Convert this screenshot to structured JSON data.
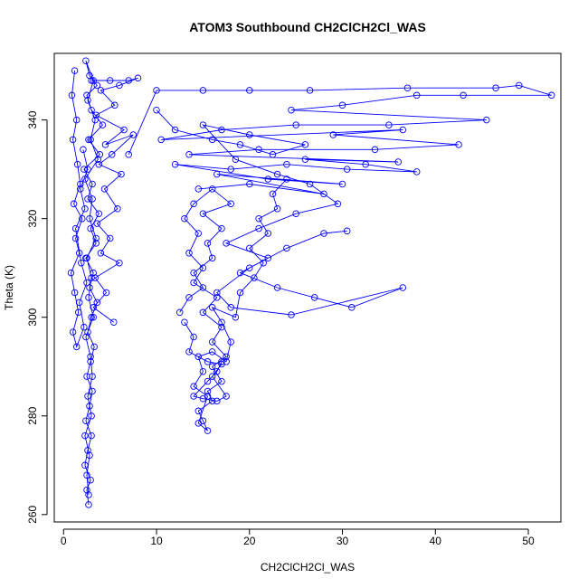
{
  "chart_data": {
    "type": "scatter",
    "title": "ATOM3 Southbound CH2ClCH2Cl_WAS",
    "xlabel": "CH2ClCH2Cl_WAS",
    "ylabel": "Theta (K)",
    "xlim": [
      -1,
      53.5
    ],
    "ylim": [
      258.5,
      353.5
    ],
    "xticks": [
      0,
      10,
      20,
      30,
      40,
      50
    ],
    "yticks": [
      260,
      280,
      300,
      320,
      340
    ],
    "grid": false,
    "legend": "none",
    "color": "#0000ff",
    "marker": "open-circle",
    "connected": true,
    "series": [
      {
        "values": [
          [
            2.7,
            262
          ],
          [
            2.5,
            265
          ],
          [
            2.9,
            267
          ],
          [
            2.3,
            270
          ],
          [
            2.6,
            273
          ],
          [
            3.0,
            276
          ],
          [
            2.4,
            279
          ],
          [
            2.8,
            282
          ],
          [
            3.1,
            285
          ],
          [
            2.5,
            288
          ],
          [
            2.9,
            291
          ],
          [
            3.3,
            294
          ],
          [
            2.6,
            297
          ],
          [
            3.0,
            300
          ],
          [
            3.6,
            303
          ],
          [
            2.8,
            306
          ],
          [
            3.2,
            309
          ],
          [
            2.4,
            312
          ],
          [
            3.5,
            315
          ],
          [
            2.9,
            318
          ],
          [
            3.8,
            321
          ],
          [
            2.6,
            324
          ],
          [
            3.1,
            327
          ],
          [
            2.2,
            330
          ],
          [
            3.9,
            333
          ],
          [
            2.7,
            336
          ],
          [
            4.2,
            339
          ],
          [
            3.0,
            342
          ],
          [
            2.5,
            345
          ],
          [
            3.6,
            347
          ],
          [
            2.8,
            349
          ],
          [
            2.4,
            352
          ],
          [
            3.2,
            348
          ],
          [
            2.6,
            344
          ],
          [
            3.4,
            340
          ],
          [
            2.9,
            336
          ],
          [
            3.7,
            332
          ],
          [
            2.3,
            328
          ],
          [
            3.1,
            324
          ],
          [
            2.8,
            320
          ],
          [
            3.5,
            316
          ],
          [
            2.5,
            312
          ],
          [
            3.0,
            308
          ],
          [
            2.7,
            304
          ],
          [
            3.2,
            300
          ],
          [
            2.4,
            296
          ],
          [
            2.9,
            292
          ],
          [
            3.1,
            288
          ],
          [
            2.6,
            284
          ],
          [
            3.0,
            280
          ],
          [
            2.3,
            276
          ],
          [
            2.8,
            272
          ],
          [
            2.5,
            268
          ],
          [
            2.7,
            264
          ]
        ]
      },
      {
        "values": [
          [
            1.2,
            350
          ],
          [
            0.9,
            345
          ],
          [
            1.4,
            340
          ],
          [
            1.0,
            336
          ],
          [
            1.5,
            331
          ],
          [
            1.8,
            327
          ],
          [
            1.1,
            323
          ],
          [
            2.0,
            320
          ],
          [
            1.3,
            316
          ],
          [
            1.7,
            313
          ],
          [
            0.8,
            309
          ],
          [
            1.2,
            305
          ],
          [
            1.6,
            301
          ],
          [
            1.0,
            297
          ],
          [
            1.4,
            294
          ],
          [
            2.2,
            298
          ],
          [
            1.7,
            303
          ],
          [
            2.5,
            307
          ],
          [
            1.9,
            311
          ],
          [
            1.3,
            318
          ],
          [
            2.3,
            322
          ],
          [
            1.8,
            326
          ],
          [
            2.6,
            330
          ],
          [
            2.1,
            334
          ]
        ]
      },
      {
        "values": [
          [
            3.0,
            348
          ],
          [
            5.0,
            348
          ],
          [
            7.0,
            348
          ],
          [
            8.0,
            348.5
          ],
          [
            6.0,
            347
          ],
          [
            4.0,
            346
          ],
          [
            5.5,
            343
          ],
          [
            3.5,
            341
          ],
          [
            6.5,
            338
          ],
          [
            4.5,
            335
          ],
          [
            7.5,
            337
          ],
          [
            5.2,
            333
          ],
          [
            3.8,
            331
          ],
          [
            6.2,
            329
          ],
          [
            4.4,
            326
          ],
          [
            5.8,
            322
          ],
          [
            3.6,
            319
          ],
          [
            5.0,
            316
          ],
          [
            4.0,
            313
          ],
          [
            6.0,
            311
          ],
          [
            3.4,
            308
          ],
          [
            4.6,
            305
          ],
          [
            3.2,
            302
          ],
          [
            5.4,
            299
          ]
        ]
      },
      {
        "values": [
          [
            7.0,
            333
          ],
          [
            10.0,
            346
          ],
          [
            15.0,
            346
          ],
          [
            20.0,
            346
          ],
          [
            26.5,
            346
          ],
          [
            37.0,
            346.5
          ],
          [
            46.5,
            346.5
          ],
          [
            49.0,
            347
          ],
          [
            52.5,
            345
          ],
          [
            43.0,
            345
          ],
          [
            38.0,
            345
          ],
          [
            30.0,
            343
          ],
          [
            24.5,
            342
          ],
          [
            45.5,
            340
          ],
          [
            35.0,
            339
          ],
          [
            25.0,
            339
          ],
          [
            17.0,
            338
          ],
          [
            10.5,
            336
          ],
          [
            36.5,
            338
          ],
          [
            29.0,
            337
          ],
          [
            42.5,
            335
          ],
          [
            33.5,
            334
          ],
          [
            21.0,
            334
          ],
          [
            13.5,
            333
          ],
          [
            36.0,
            331.5
          ],
          [
            26.0,
            332
          ],
          [
            32.5,
            331
          ],
          [
            38.0,
            329.5
          ],
          [
            30.5,
            330
          ],
          [
            24.0,
            331
          ],
          [
            18.0,
            330
          ],
          [
            12.0,
            331
          ],
          [
            22.0,
            328
          ],
          [
            30.0,
            327
          ],
          [
            16.5,
            329
          ],
          [
            28.0,
            325
          ],
          [
            20.0,
            327
          ],
          [
            14.5,
            326
          ]
        ]
      },
      {
        "values": [
          [
            10.0,
            342
          ],
          [
            12.0,
            338
          ],
          [
            16.0,
            336
          ],
          [
            19.0,
            335
          ],
          [
            22.5,
            333
          ],
          [
            26.0,
            335
          ],
          [
            20.0,
            337
          ],
          [
            15.0,
            339
          ],
          [
            18.5,
            332
          ],
          [
            23.0,
            329
          ],
          [
            26.5,
            327
          ],
          [
            29.5,
            323
          ],
          [
            25.0,
            321
          ],
          [
            21.0,
            318
          ],
          [
            17.5,
            315
          ],
          [
            22.0,
            312
          ],
          [
            19.0,
            309
          ],
          [
            23.0,
            306
          ],
          [
            27.0,
            304
          ],
          [
            31.0,
            302
          ],
          [
            36.5,
            306
          ],
          [
            24.5,
            300.5
          ],
          [
            18.0,
            302
          ],
          [
            16.5,
            305
          ],
          [
            20.0,
            310
          ],
          [
            24.0,
            314
          ],
          [
            28.0,
            317
          ],
          [
            30.5,
            317.5
          ]
        ]
      },
      {
        "values": [
          [
            12.5,
            301
          ],
          [
            13.5,
            304
          ],
          [
            15.0,
            306
          ],
          [
            14.0,
            309
          ],
          [
            16.0,
            312
          ],
          [
            15.5,
            315
          ],
          [
            17.0,
            318
          ],
          [
            15.0,
            321
          ],
          [
            18.0,
            323
          ],
          [
            16.0,
            326
          ],
          [
            14.0,
            323
          ],
          [
            13.0,
            320
          ],
          [
            14.5,
            317
          ],
          [
            13.5,
            313
          ],
          [
            15.0,
            310
          ],
          [
            14.0,
            307
          ],
          [
            16.5,
            304
          ],
          [
            15.0,
            301
          ],
          [
            17.0,
            298
          ],
          [
            16.0,
            295
          ],
          [
            17.5,
            292
          ],
          [
            16.0,
            290
          ],
          [
            17.0,
            287
          ],
          [
            15.5,
            285
          ],
          [
            16.0,
            283
          ],
          [
            14.5,
            281
          ],
          [
            15.0,
            279
          ],
          [
            15.5,
            277
          ],
          [
            14.5,
            278.5
          ],
          [
            15.5,
            284
          ],
          [
            14.0,
            286
          ],
          [
            15.0,
            289
          ],
          [
            14.5,
            292
          ],
          [
            16.0,
            293
          ],
          [
            17.5,
            291
          ],
          [
            18.0,
            295
          ],
          [
            17.0,
            299
          ],
          [
            16.0,
            302
          ],
          [
            18.5,
            300
          ],
          [
            19.0,
            305
          ],
          [
            20.5,
            308
          ],
          [
            21.5,
            311
          ],
          [
            20.0,
            314
          ],
          [
            22.0,
            317
          ],
          [
            21.0,
            320
          ],
          [
            23.0,
            322
          ],
          [
            22.5,
            325
          ],
          [
            24.0,
            328
          ]
        ]
      },
      {
        "values": [
          [
            13.0,
            299
          ],
          [
            14.0,
            296
          ],
          [
            13.5,
            293
          ],
          [
            15.5,
            291
          ],
          [
            17.0,
            290.5
          ],
          [
            16.0,
            288
          ],
          [
            17.5,
            284
          ],
          [
            16.5,
            283
          ],
          [
            15.0,
            283.5
          ],
          [
            14.0,
            284
          ],
          [
            15.5,
            287
          ],
          [
            16.5,
            289
          ],
          [
            17.0,
            291
          ]
        ]
      }
    ]
  }
}
